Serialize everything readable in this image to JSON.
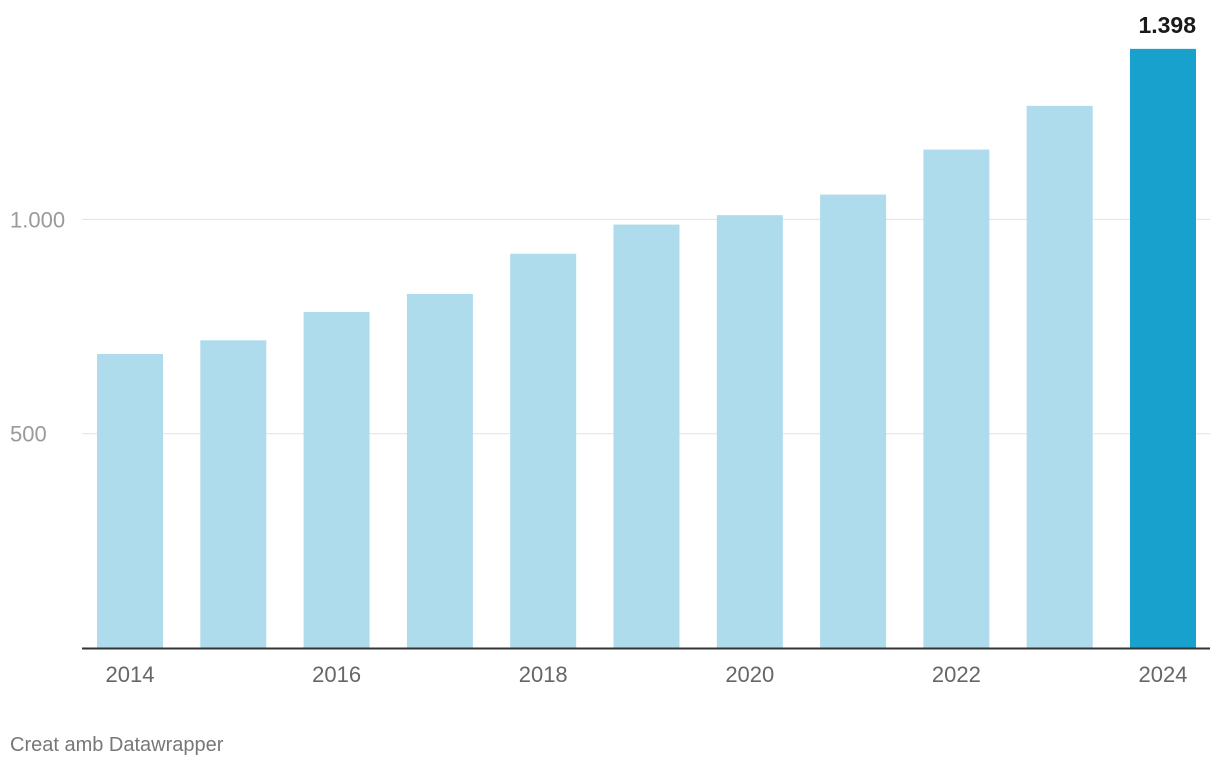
{
  "chart_data": {
    "type": "bar",
    "categories": [
      "2014",
      "2015",
      "2016",
      "2017",
      "2018",
      "2019",
      "2020",
      "2021",
      "2022",
      "2023",
      "2024"
    ],
    "values": [
      686,
      718,
      784,
      826,
      920,
      988,
      1010,
      1058,
      1163,
      1265,
      1398
    ],
    "highlight": {
      "category": "2024",
      "label": "1.398"
    },
    "x_tick_labels": [
      "2014",
      "2016",
      "2018",
      "2020",
      "2022",
      "2024"
    ],
    "y_ticks": [
      {
        "value": 500,
        "label": "500"
      },
      {
        "value": 1000,
        "label": "1.000"
      }
    ],
    "ylim": [
      0,
      1398
    ],
    "grid": true,
    "colors": {
      "bar": "#aedcec",
      "highlight_bar": "#18a1cd",
      "grid": "#e2e2e2",
      "axis": "#333333",
      "tick_text": "#9a9a9a",
      "xlabel_text": "#666666",
      "value_label": "#1a1a1a"
    }
  },
  "credit": "Creat amb Datawrapper"
}
